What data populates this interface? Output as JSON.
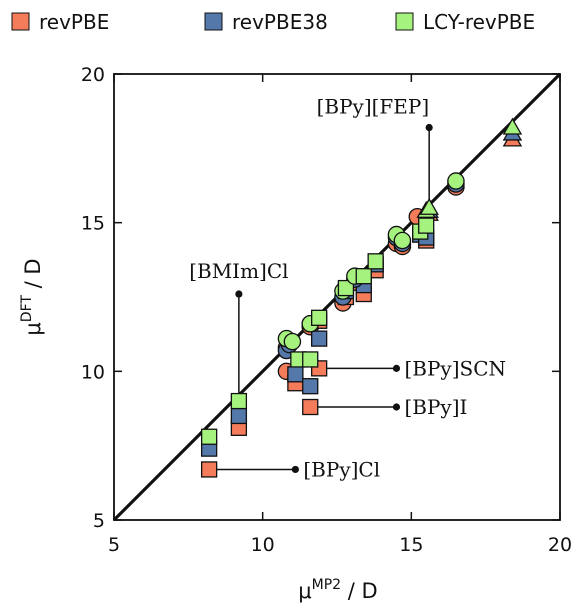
{
  "chart_data": {
    "type": "scatter",
    "title": "",
    "xlabel": {
      "base": "μ",
      "sup": "MP2",
      "unit": " / D"
    },
    "ylabel": {
      "base": "μ",
      "sup": "DFT",
      "unit": " / D"
    },
    "xlim": [
      5,
      20
    ],
    "ylim": [
      5,
      20
    ],
    "xticks": [
      5,
      10,
      15,
      20
    ],
    "yticks": [
      5,
      10,
      15,
      20
    ],
    "grid": false,
    "legend_position": "top",
    "reference_line": "y = x",
    "series": [
      {
        "name": "revPBE",
        "color": "#f47c5a",
        "points": [
          {
            "x": 8.2,
            "y": 6.7,
            "m": "square"
          },
          {
            "x": 9.2,
            "y": 8.1,
            "m": "square"
          },
          {
            "x": 10.8,
            "y": 10.0,
            "m": "circle"
          },
          {
            "x": 11.1,
            "y": 9.6,
            "m": "square"
          },
          {
            "x": 11.6,
            "y": 8.8,
            "m": "square"
          },
          {
            "x": 11.9,
            "y": 10.1,
            "m": "square"
          },
          {
            "x": 10.8,
            "y": 10.8,
            "m": "circle"
          },
          {
            "x": 11.6,
            "y": 11.5,
            "m": "circle"
          },
          {
            "x": 11.9,
            "y": 11.7,
            "m": "square"
          },
          {
            "x": 12.7,
            "y": 12.3,
            "m": "circle"
          },
          {
            "x": 12.8,
            "y": 12.5,
            "m": "square"
          },
          {
            "x": 13.4,
            "y": 12.6,
            "m": "square"
          },
          {
            "x": 13.1,
            "y": 13.0,
            "m": "circle"
          },
          {
            "x": 13.8,
            "y": 13.4,
            "m": "square"
          },
          {
            "x": 14.5,
            "y": 14.3,
            "m": "circle"
          },
          {
            "x": 14.7,
            "y": 14.2,
            "m": "circle"
          },
          {
            "x": 15.2,
            "y": 15.2,
            "m": "circle"
          },
          {
            "x": 15.3,
            "y": 14.6,
            "m": "square"
          },
          {
            "x": 15.5,
            "y": 14.4,
            "m": "square"
          },
          {
            "x": 15.6,
            "y": 15.3,
            "m": "triangle"
          },
          {
            "x": 16.5,
            "y": 16.2,
            "m": "circle"
          },
          {
            "x": 18.4,
            "y": 17.8,
            "m": "triangle"
          }
        ]
      },
      {
        "name": "revPBE38",
        "color": "#5578aa",
        "points": [
          {
            "x": 8.2,
            "y": 7.4,
            "m": "square"
          },
          {
            "x": 9.2,
            "y": 8.5,
            "m": "square"
          },
          {
            "x": 10.8,
            "y": 10.7,
            "m": "circle"
          },
          {
            "x": 11.1,
            "y": 9.9,
            "m": "square"
          },
          {
            "x": 11.6,
            "y": 9.5,
            "m": "square"
          },
          {
            "x": 11.9,
            "y": 11.1,
            "m": "square"
          },
          {
            "x": 10.9,
            "y": 10.9,
            "m": "circle"
          },
          {
            "x": 11.6,
            "y": 11.6,
            "m": "circle"
          },
          {
            "x": 12.7,
            "y": 12.5,
            "m": "circle"
          },
          {
            "x": 12.8,
            "y": 12.7,
            "m": "square"
          },
          {
            "x": 13.4,
            "y": 12.9,
            "m": "square"
          },
          {
            "x": 13.1,
            "y": 13.1,
            "m": "circle"
          },
          {
            "x": 13.8,
            "y": 13.6,
            "m": "square"
          },
          {
            "x": 14.5,
            "y": 14.5,
            "m": "circle"
          },
          {
            "x": 14.7,
            "y": 14.3,
            "m": "circle"
          },
          {
            "x": 15.3,
            "y": 14.6,
            "m": "square"
          },
          {
            "x": 15.5,
            "y": 14.5,
            "m": "square"
          },
          {
            "x": 15.6,
            "y": 15.4,
            "m": "triangle"
          },
          {
            "x": 16.5,
            "y": 16.3,
            "m": "circle"
          },
          {
            "x": 18.4,
            "y": 18.0,
            "m": "triangle"
          }
        ]
      },
      {
        "name": "LCY-revPBE",
        "color": "#a6f27e",
        "points": [
          {
            "x": 8.2,
            "y": 7.8,
            "m": "square"
          },
          {
            "x": 9.2,
            "y": 9.0,
            "m": "square"
          },
          {
            "x": 10.8,
            "y": 11.1,
            "m": "circle"
          },
          {
            "x": 11.0,
            "y": 11.0,
            "m": "circle"
          },
          {
            "x": 11.2,
            "y": 10.4,
            "m": "square"
          },
          {
            "x": 11.6,
            "y": 10.4,
            "m": "square"
          },
          {
            "x": 11.6,
            "y": 11.6,
            "m": "circle"
          },
          {
            "x": 11.9,
            "y": 11.8,
            "m": "square"
          },
          {
            "x": 12.7,
            "y": 12.7,
            "m": "circle"
          },
          {
            "x": 12.8,
            "y": 12.8,
            "m": "square"
          },
          {
            "x": 13.1,
            "y": 13.2,
            "m": "circle"
          },
          {
            "x": 13.4,
            "y": 13.2,
            "m": "square"
          },
          {
            "x": 13.8,
            "y": 13.7,
            "m": "square"
          },
          {
            "x": 14.5,
            "y": 14.6,
            "m": "circle"
          },
          {
            "x": 14.7,
            "y": 14.4,
            "m": "circle"
          },
          {
            "x": 15.3,
            "y": 14.7,
            "m": "square"
          },
          {
            "x": 15.5,
            "y": 14.9,
            "m": "square"
          },
          {
            "x": 15.5,
            "y": 15.4,
            "m": "triangle"
          },
          {
            "x": 15.6,
            "y": 15.5,
            "m": "triangle"
          },
          {
            "x": 16.5,
            "y": 16.4,
            "m": "circle"
          },
          {
            "x": 18.4,
            "y": 18.2,
            "m": "triangle"
          }
        ]
      }
    ],
    "annotations": [
      {
        "text": "[BPy][FEP]",
        "anchor": {
          "x": 15.6,
          "y": 18.2
        },
        "target": {
          "x": 15.6,
          "y": 15.5
        },
        "label_side": "above-left"
      },
      {
        "text": "[BMIm]Cl",
        "anchor": {
          "x": 9.2,
          "y": 12.6
        },
        "target": {
          "x": 9.2,
          "y": 9.0
        },
        "label_side": "above"
      },
      {
        "text": "[BPy]SCN",
        "anchor": {
          "x": 14.5,
          "y": 10.1
        },
        "target": {
          "x": 11.9,
          "y": 10.1
        },
        "label_side": "right"
      },
      {
        "text": "[BPy]I",
        "anchor": {
          "x": 14.5,
          "y": 8.8
        },
        "target": {
          "x": 11.6,
          "y": 8.8
        },
        "label_side": "right"
      },
      {
        "text": "[BPy]Cl",
        "anchor": {
          "x": 11.1,
          "y": 6.7
        },
        "target": {
          "x": 8.2,
          "y": 6.7
        },
        "label_side": "right"
      }
    ]
  }
}
